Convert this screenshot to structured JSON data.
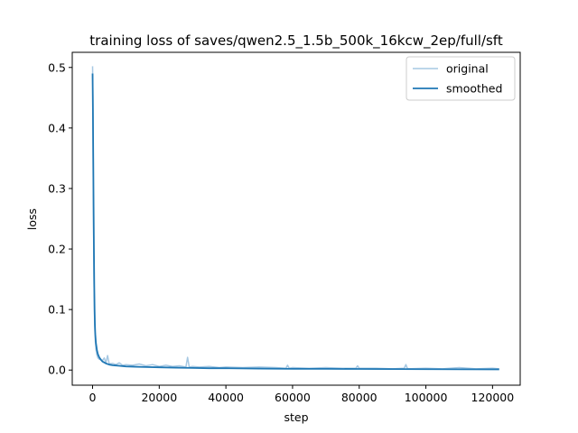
{
  "chart_data": {
    "type": "line",
    "title": "training loss of saves/qwen2.5_1.5b_500k_16kcw_2ep/full/sft",
    "xlabel": "step",
    "ylabel": "loss",
    "xlim": [
      -6100,
      128300
    ],
    "ylim": [
      -0.025,
      0.525
    ],
    "x_ticks": [
      0,
      20000,
      40000,
      60000,
      80000,
      100000,
      120000
    ],
    "x_tick_labels": [
      "0",
      "20000",
      "40000",
      "60000",
      "80000",
      "100000",
      "120000"
    ],
    "y_ticks": [
      0.0,
      0.1,
      0.2,
      0.3,
      0.4,
      0.5
    ],
    "y_tick_labels": [
      "0.0",
      "0.1",
      "0.2",
      "0.3",
      "0.4",
      "0.5"
    ],
    "grid": false,
    "legend": {
      "placement": "top-right",
      "entries": [
        "original",
        "smoothed"
      ]
    },
    "series": [
      {
        "name": "original",
        "color": "#a6c8e3",
        "x": [
          0,
          100,
          200,
          400,
          600,
          800,
          1000,
          1300,
          1600,
          2000,
          2500,
          3000,
          3500,
          4000,
          4500,
          5000,
          6000,
          7000,
          8000,
          9000,
          10000,
          12000,
          14000,
          16000,
          18000,
          20000,
          22000,
          24000,
          26000,
          28000,
          28500,
          29000,
          30000,
          32000,
          35000,
          38000,
          40000,
          45000,
          50000,
          55000,
          58000,
          58500,
          59000,
          60000,
          65000,
          70000,
          75000,
          79000,
          79500,
          80000,
          85000,
          90000,
          93500,
          94000,
          94500,
          100000,
          105000,
          110000,
          115000,
          120000,
          122000
        ],
        "values": [
          0.502,
          0.45,
          0.3,
          0.16,
          0.08,
          0.05,
          0.035,
          0.025,
          0.02,
          0.018,
          0.017,
          0.016,
          0.02,
          0.012,
          0.024,
          0.01,
          0.011,
          0.009,
          0.012,
          0.008,
          0.009,
          0.008,
          0.01,
          0.007,
          0.009,
          0.006,
          0.008,
          0.006,
          0.007,
          0.005,
          0.021,
          0.005,
          0.006,
          0.005,
          0.006,
          0.004,
          0.005,
          0.004,
          0.005,
          0.004,
          0.003,
          0.008,
          0.003,
          0.004,
          0.003,
          0.004,
          0.003,
          0.003,
          0.007,
          0.003,
          0.003,
          0.002,
          0.003,
          0.009,
          0.002,
          0.003,
          0.002,
          0.004,
          0.002,
          0.003,
          0.002
        ]
      },
      {
        "name": "smoothed",
        "color": "#1f77b4",
        "x": [
          0,
          100,
          200,
          300,
          400,
          500,
          600,
          700,
          800,
          1000,
          1300,
          1600,
          2000,
          2500,
          3000,
          4000,
          5000,
          6000,
          8000,
          10000,
          13000,
          16000,
          20000,
          25000,
          30000,
          35000,
          40000,
          50000,
          60000,
          70000,
          80000,
          90000,
          100000,
          110000,
          122000
        ],
        "values": [
          0.49,
          0.43,
          0.35,
          0.27,
          0.2,
          0.14,
          0.1,
          0.075,
          0.06,
          0.045,
          0.033,
          0.026,
          0.021,
          0.017,
          0.014,
          0.011,
          0.009,
          0.008,
          0.007,
          0.006,
          0.0055,
          0.005,
          0.0045,
          0.004,
          0.0035,
          0.003,
          0.003,
          0.0025,
          0.002,
          0.002,
          0.0018,
          0.0016,
          0.0015,
          0.0013,
          0.0012
        ]
      }
    ]
  }
}
